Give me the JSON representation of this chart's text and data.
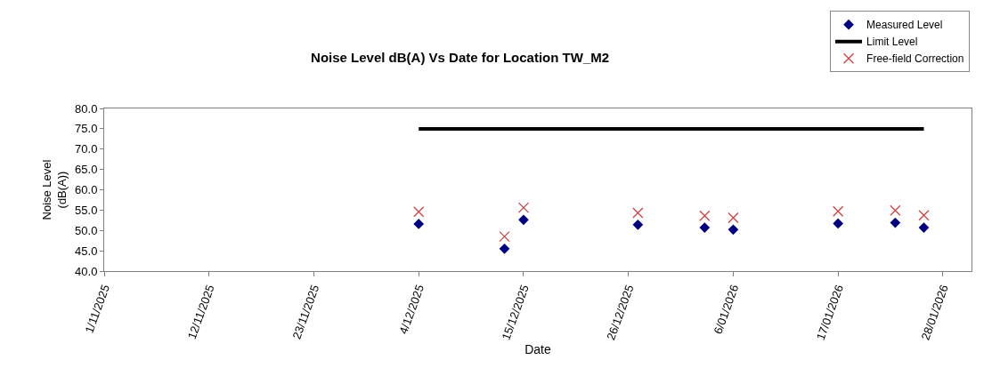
{
  "chart_data": {
    "type": "scatter",
    "title": "Noise Level dB(A) Vs Date for Location TW_M2",
    "xlabel": "Date",
    "ylabel": "Noise Level (dB(A))",
    "xlim": [
      "2025-11-01",
      "2026-01-31"
    ],
    "xticks": [
      {
        "value": "2025-11-01",
        "label": "1/11/2025"
      },
      {
        "value": "2025-11-12",
        "label": "12/11/2025"
      },
      {
        "value": "2025-11-23",
        "label": "23/11/2025"
      },
      {
        "value": "2025-12-04",
        "label": "4/12/2025"
      },
      {
        "value": "2025-12-15",
        "label": "15/12/2025"
      },
      {
        "value": "2025-12-26",
        "label": "26/12/2025"
      },
      {
        "value": "2026-01-06",
        "label": "6/01/2026"
      },
      {
        "value": "2026-01-17",
        "label": "17/01/2026"
      },
      {
        "value": "2026-01-28",
        "label": "28/01/2026"
      }
    ],
    "ylim": [
      40,
      80
    ],
    "yticks": [
      {
        "value": 40,
        "label": "40.0"
      },
      {
        "value": 45,
        "label": "45.0"
      },
      {
        "value": 50,
        "label": "50.0"
      },
      {
        "value": 55,
        "label": "55.0"
      },
      {
        "value": 60,
        "label": "60.0"
      },
      {
        "value": 65,
        "label": "65.0"
      },
      {
        "value": 70,
        "label": "70.0"
      },
      {
        "value": 75,
        "label": "75.0"
      },
      {
        "value": 80,
        "label": "80.0"
      }
    ],
    "grid": false,
    "legend": "top right",
    "series": [
      {
        "name": "Measured Level",
        "marker": "diamond",
        "color": "#000080",
        "x": [
          "2025-12-04",
          "2025-12-13",
          "2025-12-15",
          "2025-12-27",
          "2026-01-03",
          "2026-01-06",
          "2026-01-17",
          "2026-01-23",
          "2026-01-26"
        ],
        "values": [
          51.6,
          45.5,
          52.6,
          51.4,
          50.7,
          50.2,
          51.7,
          51.9,
          50.7
        ]
      },
      {
        "name": "Limit Level",
        "type": "line",
        "marker": "none",
        "color": "#000000",
        "x": [
          "2025-12-04",
          "2026-01-26"
        ],
        "values": [
          75,
          75
        ]
      },
      {
        "name": "Free-field Correction",
        "marker": "cross",
        "color": "#cc4444",
        "x": [
          "2025-12-04",
          "2025-12-13",
          "2025-12-15",
          "2025-12-27",
          "2026-01-03",
          "2026-01-06",
          "2026-01-17",
          "2026-01-23",
          "2026-01-26"
        ],
        "values": [
          54.6,
          48.5,
          55.6,
          54.3,
          53.6,
          53.1,
          54.7,
          54.9,
          53.7
        ]
      }
    ]
  }
}
